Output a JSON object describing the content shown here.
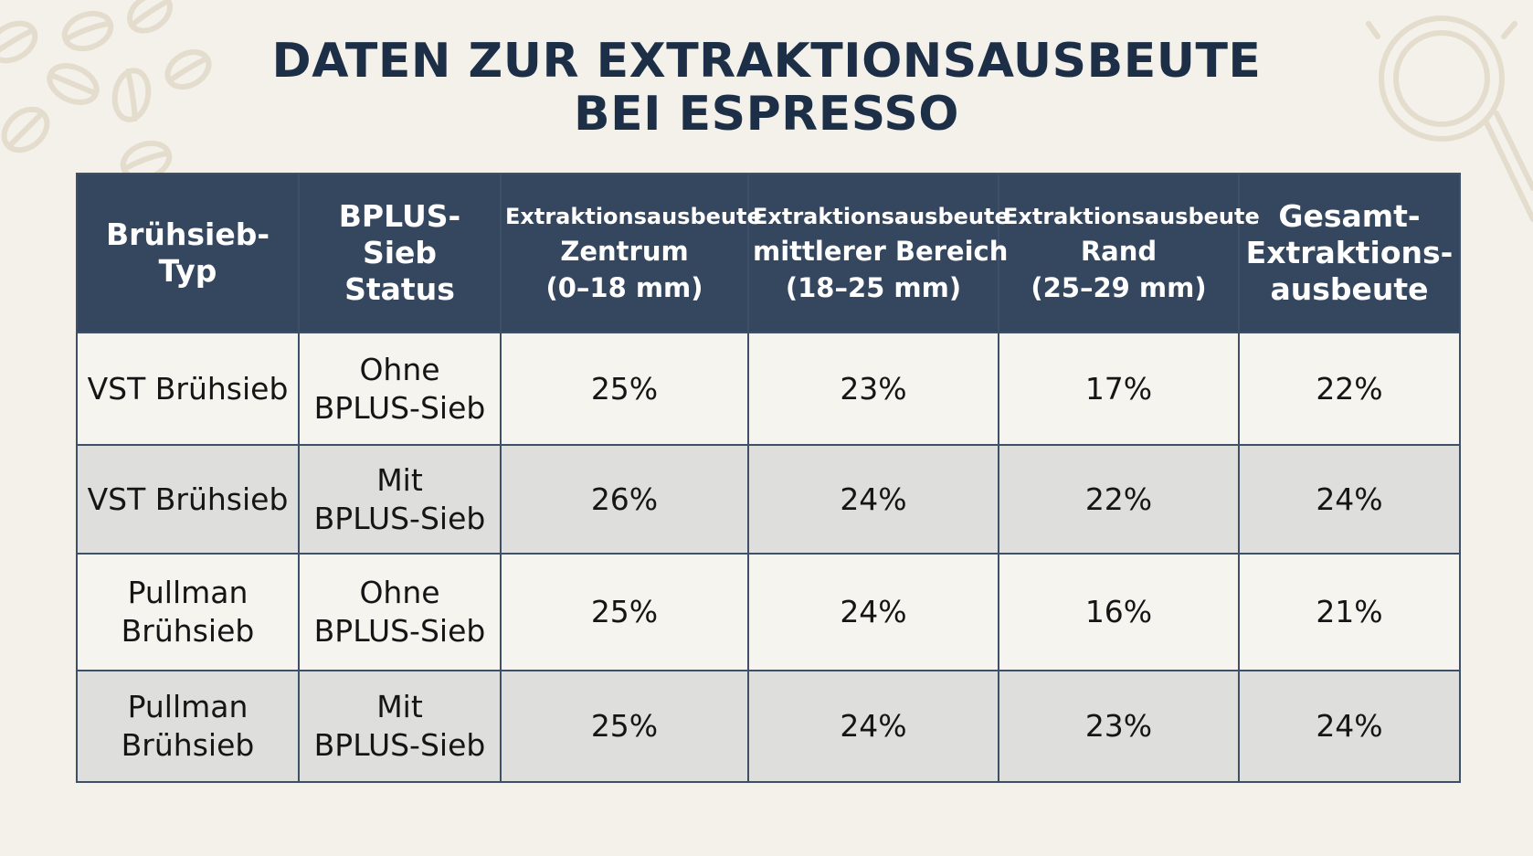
{
  "title": {
    "line1": "DATEN ZUR EXTRAKTIONSAUSBEUTE",
    "line2": "BEI ESPRESSO"
  },
  "chart_data": {
    "type": "table",
    "columns": [
      {
        "lines": [
          "Brühsieb-",
          "Typ"
        ]
      },
      {
        "lines": [
          "BPLUS-",
          "Sieb",
          "Status"
        ]
      },
      {
        "lines": [
          "Extraktionsausbeute",
          "Zentrum",
          "(0–18 mm)"
        ]
      },
      {
        "lines": [
          "Extraktionsausbeute",
          "mittlerer Bereich",
          "(18–25 mm)"
        ]
      },
      {
        "lines": [
          "Extraktionsausbeute",
          "Rand",
          "(25–29 mm)"
        ]
      },
      {
        "lines": [
          "Gesamt-",
          "Extraktions-",
          "ausbeute"
        ]
      }
    ],
    "rows": [
      {
        "sieve": [
          "VST Brühsieb"
        ],
        "status": [
          "Ohne",
          "BPLUS-Sieb"
        ],
        "center": "25%",
        "middle": "23%",
        "edge": "17%",
        "total": "22%"
      },
      {
        "sieve": [
          "VST Brühsieb"
        ],
        "status": [
          "Mit",
          "BPLUS-Sieb"
        ],
        "center": "26%",
        "middle": "24%",
        "edge": "22%",
        "total": "24%"
      },
      {
        "sieve": [
          "Pullman",
          "Brühsieb"
        ],
        "status": [
          "Ohne",
          "BPLUS-Sieb"
        ],
        "center": "25%",
        "middle": "24%",
        "edge": "16%",
        "total": "21%"
      },
      {
        "sieve": [
          "Pullman",
          "Brühsieb"
        ],
        "status": [
          "Mit",
          "BPLUS-Sieb"
        ],
        "center": "25%",
        "middle": "24%",
        "edge": "23%",
        "total": "24%"
      }
    ]
  },
  "colors": {
    "background": "#f3f1ea",
    "header_bg": "#34475f",
    "title": "#1d2f47",
    "row_light": "#f6f4ef",
    "row_dark": "#dededc"
  },
  "decorations": [
    "coffee-beans-icon",
    "portafilter-icon"
  ]
}
